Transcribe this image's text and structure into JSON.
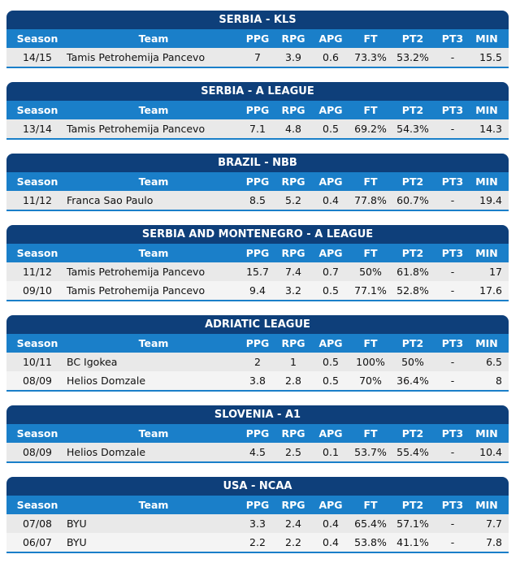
{
  "headers": {
    "season": "Season",
    "team": "Team",
    "ppg": "PPG",
    "rpg": "RPG",
    "apg": "APG",
    "ft": "FT",
    "pt2": "PT2",
    "pt3": "PT3",
    "min": "MIN"
  },
  "leagues": [
    {
      "title": "SERBIA - KLS",
      "rows": [
        {
          "season": "14/15",
          "team": "Tamis Petrohemija Pancevo",
          "ppg": "7",
          "rpg": "3.9",
          "apg": "0.6",
          "ft": "73.3%",
          "pt2": "53.2%",
          "pt3": "-",
          "min": "15.5"
        }
      ]
    },
    {
      "title": "SERBIA - A LEAGUE",
      "rows": [
        {
          "season": "13/14",
          "team": "Tamis Petrohemija Pancevo",
          "ppg": "7.1",
          "rpg": "4.8",
          "apg": "0.5",
          "ft": "69.2%",
          "pt2": "54.3%",
          "pt3": "-",
          "min": "14.3"
        }
      ]
    },
    {
      "title": "BRAZIL - NBB",
      "rows": [
        {
          "season": "11/12",
          "team": "Franca Sao Paulo",
          "ppg": "8.5",
          "rpg": "5.2",
          "apg": "0.4",
          "ft": "77.8%",
          "pt2": "60.7%",
          "pt3": "-",
          "min": "19.4"
        }
      ]
    },
    {
      "title": "SERBIA AND MONTENEGRO - A LEAGUE",
      "rows": [
        {
          "season": "11/12",
          "team": "Tamis Petrohemija Pancevo",
          "ppg": "15.7",
          "rpg": "7.4",
          "apg": "0.7",
          "ft": "50%",
          "pt2": "61.8%",
          "pt3": "-",
          "min": "17"
        },
        {
          "season": "09/10",
          "team": "Tamis Petrohemija Pancevo",
          "ppg": "9.4",
          "rpg": "3.2",
          "apg": "0.5",
          "ft": "77.1%",
          "pt2": "52.8%",
          "pt3": "-",
          "min": "17.6"
        }
      ]
    },
    {
      "title": "ADRIATIC LEAGUE",
      "rows": [
        {
          "season": "10/11",
          "team": "BC Igokea",
          "ppg": "2",
          "rpg": "1",
          "apg": "0.5",
          "ft": "100%",
          "pt2": "50%",
          "pt3": "-",
          "min": "6.5"
        },
        {
          "season": "08/09",
          "team": "Helios Domzale",
          "ppg": "3.8",
          "rpg": "2.8",
          "apg": "0.5",
          "ft": "70%",
          "pt2": "36.4%",
          "pt3": "-",
          "min": "8"
        }
      ]
    },
    {
      "title": "SLOVENIA - A1",
      "rows": [
        {
          "season": "08/09",
          "team": "Helios Domzale",
          "ppg": "4.5",
          "rpg": "2.5",
          "apg": "0.1",
          "ft": "53.7%",
          "pt2": "55.4%",
          "pt3": "-",
          "min": "10.4"
        }
      ]
    },
    {
      "title": "USA - NCAA",
      "rows": [
        {
          "season": "07/08",
          "team": "BYU",
          "ppg": "3.3",
          "rpg": "2.4",
          "apg": "0.4",
          "ft": "65.4%",
          "pt2": "57.1%",
          "pt3": "-",
          "min": "7.7"
        },
        {
          "season": "06/07",
          "team": "BYU",
          "ppg": "2.2",
          "rpg": "2.2",
          "apg": "0.4",
          "ft": "53.8%",
          "pt2": "41.1%",
          "pt3": "-",
          "min": "7.8"
        }
      ]
    }
  ]
}
